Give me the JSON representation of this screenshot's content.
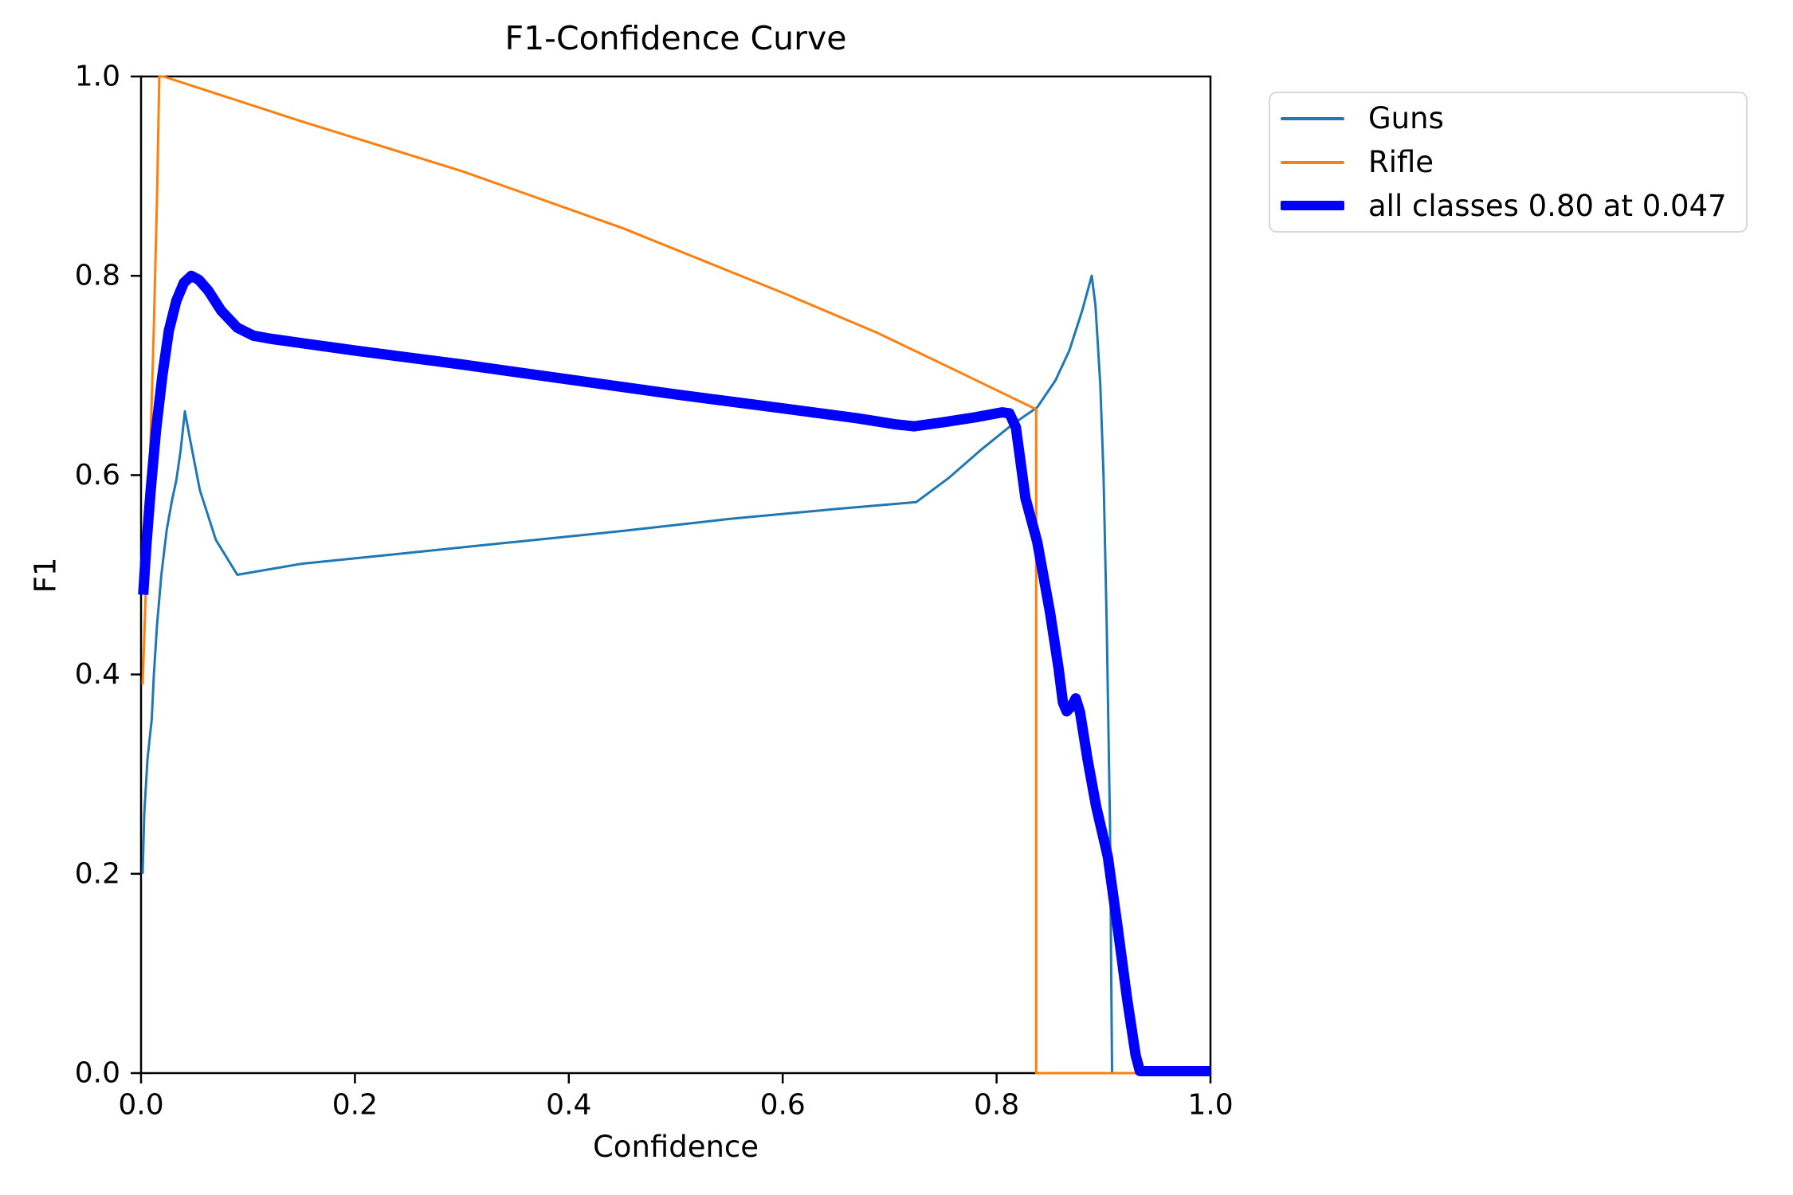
{
  "figure": {
    "background": "#ffffff"
  },
  "chart_data": {
    "type": "line",
    "title": "F1-Confidence Curve",
    "xlabel": "Confidence",
    "ylabel": "F1",
    "xlim": [
      0.0,
      1.0
    ],
    "ylim": [
      0.0,
      1.0
    ],
    "xticks": [
      "0.0",
      "0.2",
      "0.4",
      "0.6",
      "0.8",
      "1.0"
    ],
    "yticks": [
      "0.0",
      "0.2",
      "0.4",
      "0.6",
      "0.8",
      "1.0"
    ],
    "grid": false,
    "legend_position": "outside-upper-right",
    "best": {
      "f1": "0.80",
      "confidence": "0.047"
    },
    "axis_color": "#000000",
    "legend": [
      {
        "label": "Guns",
        "color": "#1f77b4",
        "sample_thickness": 4
      },
      {
        "label": "Rifle",
        "color": "#ff7f0e",
        "sample_thickness": 4
      },
      {
        "label": "all classes 0.80 at 0.047",
        "color": "#0000ff",
        "sample_thickness": 12
      }
    ],
    "series": [
      {
        "name": "Guns",
        "color": "#1f77b4",
        "lw": 3,
        "points": [
          [
            0.0015,
            0.2
          ],
          [
            0.003,
            0.26
          ],
          [
            0.006,
            0.315
          ],
          [
            0.01,
            0.355
          ],
          [
            0.012,
            0.4
          ],
          [
            0.015,
            0.45
          ],
          [
            0.019,
            0.5
          ],
          [
            0.024,
            0.545
          ],
          [
            0.029,
            0.575
          ],
          [
            0.033,
            0.595
          ],
          [
            0.037,
            0.625
          ],
          [
            0.041,
            0.664
          ],
          [
            0.046,
            0.635
          ],
          [
            0.055,
            0.585
          ],
          [
            0.07,
            0.535
          ],
          [
            0.09,
            0.5
          ],
          [
            0.15,
            0.511
          ],
          [
            0.25,
            0.522
          ],
          [
            0.35,
            0.533
          ],
          [
            0.45,
            0.544
          ],
          [
            0.55,
            0.556
          ],
          [
            0.65,
            0.566
          ],
          [
            0.725,
            0.573
          ],
          [
            0.755,
            0.597
          ],
          [
            0.785,
            0.625
          ],
          [
            0.815,
            0.651
          ],
          [
            0.838,
            0.668
          ],
          [
            0.855,
            0.695
          ],
          [
            0.868,
            0.725
          ],
          [
            0.88,
            0.765
          ],
          [
            0.889,
            0.8
          ],
          [
            0.8925,
            0.77
          ],
          [
            0.897,
            0.69
          ],
          [
            0.9,
            0.6
          ],
          [
            0.903,
            0.45
          ],
          [
            0.906,
            0.25
          ],
          [
            0.908,
            0.0
          ]
        ]
      },
      {
        "name": "Rifle",
        "color": "#ff7f0e",
        "lw": 3,
        "points": [
          [
            0.0015,
            0.39
          ],
          [
            0.004,
            0.47
          ],
          [
            0.008,
            0.6
          ],
          [
            0.012,
            0.75
          ],
          [
            0.015,
            0.88
          ],
          [
            0.0171,
            1.0
          ],
          [
            0.021,
            1.0
          ],
          [
            0.15,
            0.955
          ],
          [
            0.3,
            0.905
          ],
          [
            0.45,
            0.848
          ],
          [
            0.6,
            0.783
          ],
          [
            0.688,
            0.743
          ],
          [
            0.76,
            0.706
          ],
          [
            0.837,
            0.666
          ],
          [
            0.837,
            0.0
          ],
          [
            1.0,
            0.0
          ]
        ]
      },
      {
        "name": "all classes",
        "color": "#0000ff",
        "lw": 13,
        "points": [
          [
            0.002,
            0.48
          ],
          [
            0.005,
            0.53
          ],
          [
            0.009,
            0.585
          ],
          [
            0.014,
            0.645
          ],
          [
            0.02,
            0.7
          ],
          [
            0.026,
            0.745
          ],
          [
            0.033,
            0.775
          ],
          [
            0.04,
            0.793
          ],
          [
            0.047,
            0.8
          ],
          [
            0.054,
            0.796
          ],
          [
            0.063,
            0.785
          ],
          [
            0.075,
            0.765
          ],
          [
            0.09,
            0.748
          ],
          [
            0.105,
            0.74
          ],
          [
            0.12,
            0.737
          ],
          [
            0.2,
            0.725
          ],
          [
            0.3,
            0.711
          ],
          [
            0.4,
            0.696
          ],
          [
            0.5,
            0.681
          ],
          [
            0.6,
            0.667
          ],
          [
            0.67,
            0.657
          ],
          [
            0.705,
            0.651
          ],
          [
            0.723,
            0.649
          ],
          [
            0.75,
            0.653
          ],
          [
            0.78,
            0.658
          ],
          [
            0.805,
            0.663
          ],
          [
            0.812,
            0.662
          ],
          [
            0.818,
            0.648
          ],
          [
            0.827,
            0.577
          ],
          [
            0.838,
            0.533
          ],
          [
            0.85,
            0.462
          ],
          [
            0.858,
            0.406
          ],
          [
            0.862,
            0.372
          ],
          [
            0.8655,
            0.363
          ],
          [
            0.87,
            0.368
          ],
          [
            0.874,
            0.376
          ],
          [
            0.878,
            0.362
          ],
          [
            0.885,
            0.315
          ],
          [
            0.893,
            0.268
          ],
          [
            0.904,
            0.217
          ],
          [
            0.913,
            0.148
          ],
          [
            0.922,
            0.075
          ],
          [
            0.93,
            0.018
          ],
          [
            0.934,
            0.002
          ],
          [
            1.0,
            0.002
          ]
        ]
      }
    ]
  }
}
